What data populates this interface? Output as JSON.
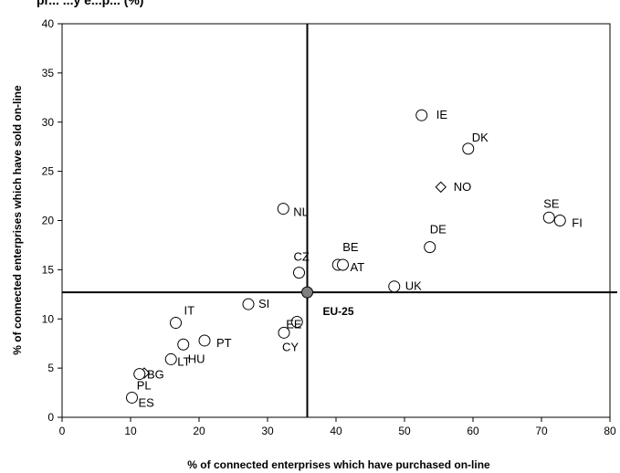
{
  "chart_data": {
    "type": "scatter",
    "title": "pr... ...y e...p...  (%)",
    "xlabel": "% of connected enterprises which have purchased on-line",
    "ylabel": "% of connected enterprises which have sold on-line",
    "xlim": [
      0,
      80
    ],
    "ylim": [
      0,
      40
    ],
    "xticks": [
      "0",
      "10",
      "20",
      "30",
      "40",
      "50",
      "60",
      "70",
      "80"
    ],
    "yticks": [
      "0",
      "5",
      "10",
      "15",
      "20",
      "25",
      "30",
      "35",
      "40"
    ],
    "grid": false,
    "points": [
      {
        "label": "IE",
        "x": 52.5,
        "y": 30.7,
        "marker": "circle"
      },
      {
        "label": "DK",
        "x": 59.3,
        "y": 27.3,
        "marker": "circle"
      },
      {
        "label": "NO",
        "x": 55.3,
        "y": 23.4,
        "marker": "diamond"
      },
      {
        "label": "SE",
        "x": 71.1,
        "y": 20.3,
        "marker": "circle"
      },
      {
        "label": "FI",
        "x": 72.7,
        "y": 20.0,
        "marker": "circle"
      },
      {
        "label": "NL",
        "x": 32.3,
        "y": 21.2,
        "marker": "circle"
      },
      {
        "label": "DE",
        "x": 53.7,
        "y": 17.3,
        "marker": "circle"
      },
      {
        "label": "CZ",
        "x": 34.6,
        "y": 14.7,
        "marker": "circle"
      },
      {
        "label": "BE",
        "x": 40.3,
        "y": 15.5,
        "marker": "circle"
      },
      {
        "label": "AT",
        "x": 41.0,
        "y": 15.5,
        "marker": "circle"
      },
      {
        "label": "UK",
        "x": 48.5,
        "y": 13.3,
        "marker": "circle"
      },
      {
        "label": "SI",
        "x": 27.2,
        "y": 11.5,
        "marker": "circle"
      },
      {
        "label": "EE",
        "x": 34.3,
        "y": 9.7,
        "marker": "circle"
      },
      {
        "label": "CY",
        "x": 32.4,
        "y": 8.6,
        "marker": "circle"
      },
      {
        "label": "IT",
        "x": 16.6,
        "y": 9.6,
        "marker": "circle"
      },
      {
        "label": "PT",
        "x": 20.8,
        "y": 7.8,
        "marker": "circle"
      },
      {
        "label": "HU",
        "x": 17.7,
        "y": 7.4,
        "marker": "circle"
      },
      {
        "label": "LT",
        "x": 15.9,
        "y": 5.9,
        "marker": "circle"
      },
      {
        "label": "BG",
        "x": 12.0,
        "y": 4.5,
        "marker": "diamond"
      },
      {
        "label": "PL",
        "x": 11.3,
        "y": 4.4,
        "marker": "circle"
      },
      {
        "label": "ES",
        "x": 10.2,
        "y": 2.0,
        "marker": "circle"
      }
    ],
    "reference": {
      "label": "EU-25",
      "x": 35.8,
      "y": 12.7
    },
    "colors": {
      "marker_fill": "#ffffff",
      "marker_stroke": "#000000",
      "reference_fill": "#808080",
      "reference_lines": "#000000"
    }
  }
}
